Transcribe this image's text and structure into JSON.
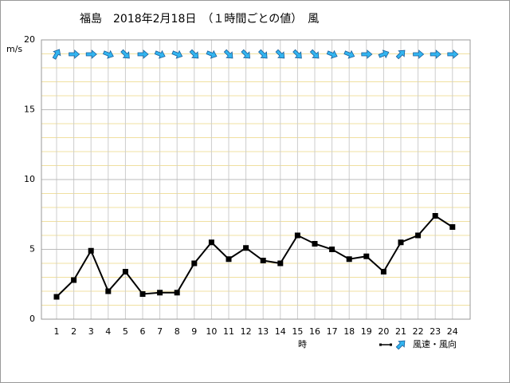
{
  "chart_data": {
    "type": "line",
    "title": "福島　2018年2月18日　（１時間ごとの値）　風",
    "y_label": "m/s",
    "x_label": "時",
    "categories": [
      "1",
      "2",
      "3",
      "4",
      "5",
      "6",
      "7",
      "8",
      "9",
      "10",
      "11",
      "12",
      "13",
      "14",
      "15",
      "16",
      "17",
      "18",
      "19",
      "20",
      "21",
      "22",
      "23",
      "24"
    ],
    "series": [
      {
        "name": "風速・風向",
        "color": "#000000",
        "values": [
          1.6,
          2.8,
          4.9,
          2.0,
          3.4,
          1.8,
          1.9,
          1.9,
          4.0,
          5.5,
          4.3,
          5.1,
          4.2,
          4.0,
          6.0,
          5.4,
          5.0,
          4.3,
          4.5,
          3.4,
          5.5,
          6.0,
          7.4,
          6.6
        ],
        "arrow_angles": [
          -60,
          0,
          0,
          22,
          45,
          0,
          22,
          22,
          45,
          22,
          45,
          45,
          45,
          45,
          45,
          45,
          22,
          22,
          0,
          -22,
          -45,
          0,
          0,
          0
        ],
        "arrow_color": "#33b5f0"
      }
    ],
    "ylim": [
      0,
      20
    ],
    "yticks": [
      0,
      5,
      10,
      15,
      20
    ],
    "grid": true
  }
}
